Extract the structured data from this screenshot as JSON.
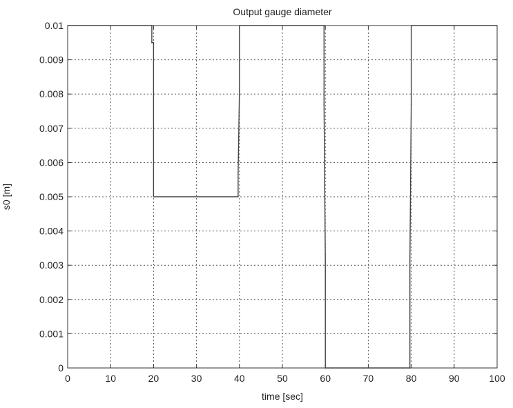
{
  "chart_data": {
    "type": "line",
    "title": "Output gauge diameter",
    "xlabel": "time [sec]",
    "ylabel": "s0 [m]",
    "xlim": [
      0,
      100
    ],
    "ylim": [
      0,
      0.01
    ],
    "xticks": [
      0,
      10,
      20,
      30,
      40,
      50,
      60,
      70,
      80,
      90,
      100
    ],
    "xtick_labels": [
      "0",
      "10",
      "20",
      "30",
      "40",
      "50",
      "60",
      "70",
      "80",
      "90",
      "100"
    ],
    "yticks": [
      0,
      0.001,
      0.002,
      0.003,
      0.004,
      0.005,
      0.006,
      0.007,
      0.008,
      0.009,
      0.01
    ],
    "ytick_labels": [
      "0",
      "0.001",
      "0.002",
      "0.003",
      "0.004",
      "0.005",
      "0.006",
      "0.007",
      "0.008",
      "0.009",
      "0.01"
    ],
    "grid": true,
    "grid_style": "dotted",
    "series": [
      {
        "color": "#444444",
        "x": [
          0,
          19.6,
          19.6,
          20,
          20,
          39.7,
          39.7,
          40,
          40,
          59.7,
          59.7,
          60,
          60,
          79.7,
          79.7,
          80,
          80,
          100
        ],
        "y": [
          0.01,
          0.01,
          0.0095,
          0.0095,
          0.005,
          0.005,
          0.0057,
          0.0081,
          0.01,
          0.01,
          0.0077,
          0.0031,
          0,
          0,
          0.0031,
          0.0077,
          0.01,
          0.01
        ]
      }
    ]
  }
}
